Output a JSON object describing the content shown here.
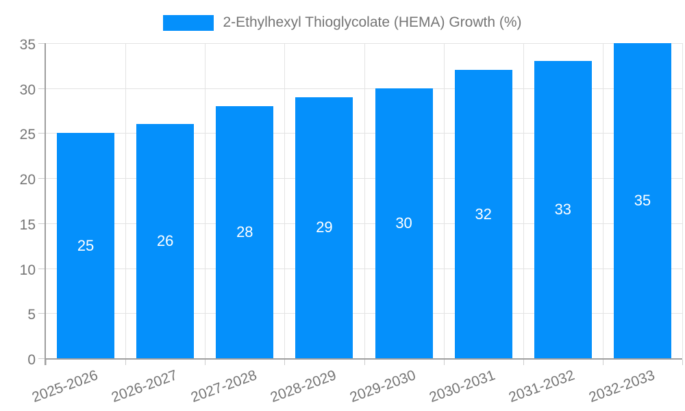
{
  "chart_data": {
    "type": "bar",
    "categories": [
      "2025-2026",
      "2026-2027",
      "2027-2028",
      "2028-2029",
      "2029-2030",
      "2030-2031",
      "2031-2032",
      "2032-2033"
    ],
    "series": [
      {
        "name": "2-Ethylhexyl Thioglycolate (HEMA) Growth (%)",
        "values": [
          25,
          26,
          28,
          29,
          30,
          32,
          33,
          35
        ],
        "color": "#0590FB"
      }
    ],
    "value_labels": [
      "25",
      "26",
      "28",
      "29",
      "30",
      "32",
      "33",
      "35"
    ],
    "xlabel": "",
    "ylabel": "",
    "ylim": [
      0,
      35
    ],
    "ytick_step": 5,
    "yticks": [
      "0",
      "5",
      "10",
      "15",
      "20",
      "25",
      "30",
      "35"
    ],
    "grid": true,
    "legend_position": "top",
    "colors": {
      "bar": "#0590FB",
      "grid": "#e3e3e3",
      "axis": "#9e9e9e",
      "tick_text": "#757575",
      "bar_label_text": "#ffffff",
      "background": "#ffffff"
    }
  }
}
